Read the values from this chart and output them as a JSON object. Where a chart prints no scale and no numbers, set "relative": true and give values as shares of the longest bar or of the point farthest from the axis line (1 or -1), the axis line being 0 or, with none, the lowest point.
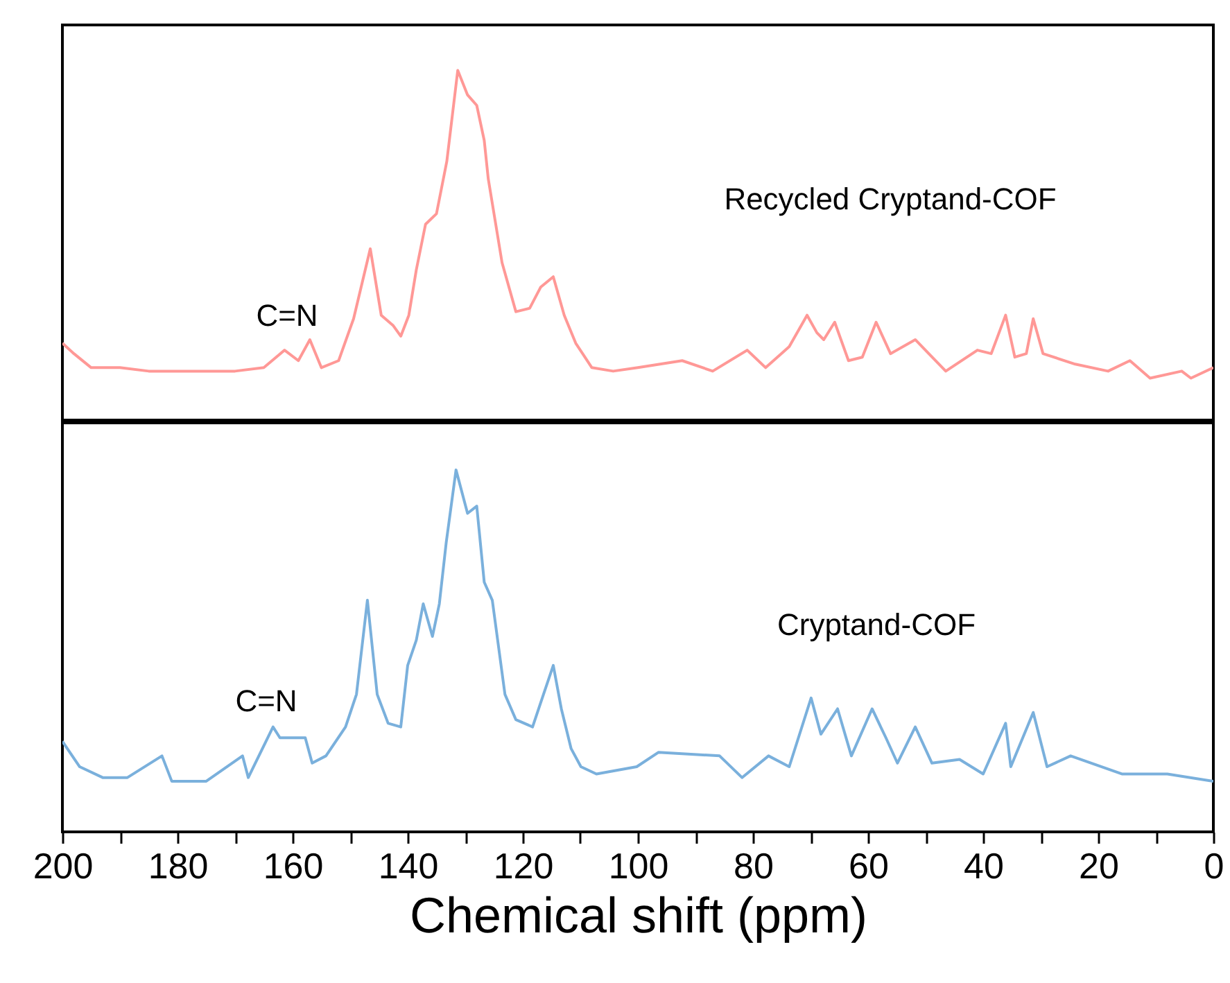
{
  "chart_data": [
    {
      "type": "line",
      "relative": true,
      "xlim": [
        200,
        0
      ],
      "tick_labels": false,
      "line_style": "solid",
      "x": [
        200,
        198,
        195,
        190,
        185,
        180,
        175,
        170,
        165,
        161.4,
        159,
        157,
        155,
        152,
        149.4,
        146.5,
        144.6,
        142.5,
        141.2,
        139.8,
        138.5,
        136.9,
        135,
        133.2,
        131.3,
        129.6,
        128,
        126.7,
        126,
        123.6,
        121.2,
        118.8,
        116.9,
        114.7,
        112.8,
        110.8,
        108,
        104.3,
        100,
        92.3,
        87,
        81,
        77.8,
        73.7,
        70.6,
        68.9,
        67.7,
        65.8,
        63.4,
        61,
        58.6,
        56.1,
        51.8,
        46.5,
        41,
        38.6,
        36.1,
        34.5,
        32.5,
        31.3,
        29.6,
        24,
        18.3,
        14.5,
        11,
        5.5,
        3.9,
        0
      ],
      "series": [
        {
          "name": "Recycled Cryptand-COF",
          "color": "#ff9896",
          "values": [
            0.22,
            0.19,
            0.15,
            0.15,
            0.14,
            0.14,
            0.14,
            0.14,
            0.15,
            0.2,
            0.17,
            0.23,
            0.15,
            0.17,
            0.29,
            0.49,
            0.3,
            0.27,
            0.24,
            0.3,
            0.43,
            0.56,
            0.59,
            0.74,
            1.0,
            0.93,
            0.9,
            0.8,
            0.69,
            0.45,
            0.31,
            0.32,
            0.38,
            0.41,
            0.3,
            0.22,
            0.15,
            0.14,
            0.15,
            0.17,
            0.14,
            0.2,
            0.15,
            0.21,
            0.3,
            0.25,
            0.23,
            0.28,
            0.17,
            0.18,
            0.28,
            0.19,
            0.23,
            0.14,
            0.2,
            0.19,
            0.3,
            0.18,
            0.19,
            0.29,
            0.19,
            0.16,
            0.14,
            0.17,
            0.12,
            0.14,
            0.12,
            0.15
          ]
        }
      ],
      "annotations": [
        "C=N"
      ]
    },
    {
      "type": "line",
      "relative": true,
      "xlim": [
        200,
        0
      ],
      "tick_labels": "x",
      "line_style": "solid",
      "xlabel": "Chemical shift (ppm)",
      "xticks": [
        200,
        {
          "value": 190,
          "label": null
        },
        180,
        {
          "value": 170,
          "label": null
        },
        160,
        {
          "value": 150,
          "label": null
        },
        140,
        {
          "value": 130,
          "label": null
        },
        120,
        {
          "value": 110,
          "label": null
        },
        100,
        {
          "value": 90,
          "label": null
        },
        80,
        {
          "value": 70,
          "label": null
        },
        60,
        {
          "value": 50,
          "label": null
        },
        40,
        {
          "value": 30,
          "label": null
        },
        20,
        {
          "value": 10,
          "label": null
        },
        0
      ],
      "x": [
        200,
        197,
        193,
        188.7,
        182.7,
        181,
        175,
        168.7,
        167.7,
        163.4,
        162.2,
        159.8,
        157.8,
        156.6,
        154.2,
        150.8,
        148.9,
        147,
        145.3,
        143.4,
        141.2,
        140,
        138.5,
        137.3,
        135.7,
        134.5,
        133.3,
        131.6,
        129.6,
        128,
        126.7,
        125.3,
        123.1,
        121.2,
        118.3,
        116.4,
        114.7,
        113.3,
        111.6,
        109.9,
        107.2,
        100.2,
        96.4,
        85.8,
        81.9,
        77.3,
        73.7,
        69.9,
        68.2,
        65.3,
        62.9,
        59.3,
        56.9,
        54.9,
        51.8,
        48.9,
        44.1,
        40,
        36.1,
        35.2,
        31.3,
        28.9,
        24.8,
        15.9,
        8,
        0
      ],
      "series": [
        {
          "name": "Cryptand-COF",
          "color": "#7ab0dc",
          "values": [
            0.25,
            0.18,
            0.15,
            0.15,
            0.21,
            0.14,
            0.14,
            0.21,
            0.15,
            0.29,
            0.26,
            0.26,
            0.26,
            0.19,
            0.21,
            0.29,
            0.38,
            0.64,
            0.38,
            0.3,
            0.29,
            0.46,
            0.53,
            0.63,
            0.54,
            0.63,
            0.8,
            1.0,
            0.88,
            0.9,
            0.69,
            0.64,
            0.38,
            0.31,
            0.29,
            0.38,
            0.46,
            0.34,
            0.23,
            0.18,
            0.16,
            0.18,
            0.22,
            0.21,
            0.15,
            0.21,
            0.18,
            0.37,
            0.27,
            0.34,
            0.21,
            0.34,
            0.26,
            0.19,
            0.29,
            0.19,
            0.2,
            0.16,
            0.3,
            0.18,
            0.33,
            0.18,
            0.21,
            0.16,
            0.16,
            0.14
          ]
        }
      ],
      "annotations": [
        "C=N"
      ]
    }
  ]
}
